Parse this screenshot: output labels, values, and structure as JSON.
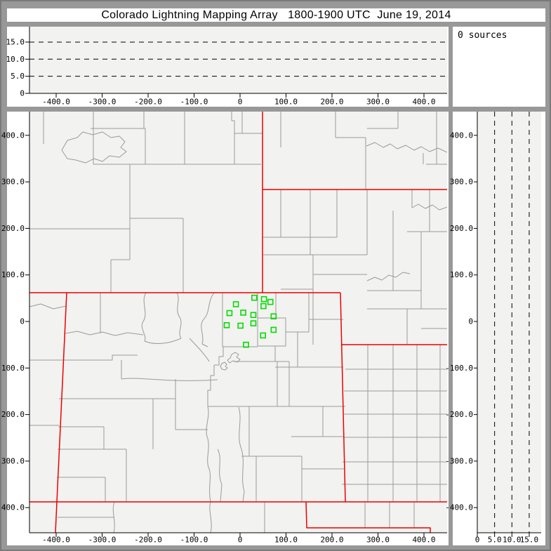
{
  "window": {
    "title": "Colorado Lightning Mapping Array   1800-1900 UTC  June 19, 2014"
  },
  "sources_panel": {
    "label": "0 sources"
  },
  "colors": {
    "frame_gray": "#989898",
    "panel_bg": "#ffffff",
    "plot_bg": "#f2f2f0",
    "county_line": "#9a9a9a",
    "state_line": "#ee0000",
    "station_marker": "#00dd00",
    "axis_and_text": "#000000"
  },
  "axes": {
    "km_ticks": [
      {
        "v": -400,
        "label": "-400.0"
      },
      {
        "v": -300,
        "label": "-300.0"
      },
      {
        "v": -200,
        "label": "-200.0"
      },
      {
        "v": -100,
        "label": "-100.0"
      },
      {
        "v": 0,
        "label": "0"
      },
      {
        "v": 100,
        "label": "100.0"
      },
      {
        "v": 200,
        "label": "200.0"
      },
      {
        "v": 300,
        "label": "300.0"
      },
      {
        "v": 400,
        "label": "400.0"
      }
    ],
    "alt_ticks": [
      {
        "v": 0,
        "label": "0"
      },
      {
        "v": 5,
        "label": "5.0"
      },
      {
        "v": 10,
        "label": "10.0"
      },
      {
        "v": 15,
        "label": "15.0"
      }
    ],
    "alt_gridlines_km": [
      5,
      10,
      15
    ]
  },
  "chart_data": [
    {
      "type": "scatter",
      "panel": "altitude-vs-east-west",
      "xlabel_ticks_km": [
        -400,
        -300,
        -200,
        -100,
        0,
        100,
        200,
        300,
        400
      ],
      "ylabel_ticks_km": [
        0,
        5,
        10,
        15
      ],
      "x_range_km": [
        -455,
        455
      ],
      "y_range_km": [
        0,
        19.5
      ],
      "gridlines_km": [
        5,
        10,
        15
      ],
      "grid_style": "dashed",
      "points": []
    },
    {
      "type": "scatter",
      "panel": "plan-view-map",
      "x_range_km": [
        -458,
        450
      ],
      "y_range_km": [
        -451,
        449
      ],
      "x_ticks_km": [
        -400,
        -300,
        -200,
        -100,
        0,
        100,
        200,
        300,
        400
      ],
      "y_ticks_km": [
        -400,
        -300,
        -200,
        -100,
        0,
        100,
        200,
        300,
        400
      ],
      "lightning_source_points": [],
      "lma_stations_km": [
        {
          "x": 31,
          "y": 51
        },
        {
          "x": 52,
          "y": 48
        },
        {
          "x": 66,
          "y": 42
        },
        {
          "x": -9,
          "y": 37
        },
        {
          "x": 51,
          "y": 33
        },
        {
          "x": 7,
          "y": 19
        },
        {
          "x": -23,
          "y": 18
        },
        {
          "x": 29,
          "y": 14
        },
        {
          "x": 73,
          "y": 11
        },
        {
          "x": -29,
          "y": -8
        },
        {
          "x": 1,
          "y": -9
        },
        {
          "x": 29,
          "y": -4
        },
        {
          "x": 73,
          "y": -18
        },
        {
          "x": 50,
          "y": -30
        },
        {
          "x": 13,
          "y": -50
        }
      ],
      "basemap": "US county boundaries (gray) and state boundaries (red) around Colorado"
    },
    {
      "type": "scatter",
      "panel": "altitude-vs-north-south",
      "xlabel_ticks_km": [
        0,
        5,
        10,
        15
      ],
      "ylabel_ticks_km": [
        -400,
        -300,
        -200,
        -100,
        0,
        100,
        200,
        300,
        400
      ],
      "x_range_km": [
        0,
        18.5
      ],
      "y_range_km": [
        -451,
        449
      ],
      "gridlines_km": [
        5,
        10,
        15
      ],
      "grid_style": "dashed",
      "points": []
    },
    {
      "type": "text",
      "panel": "source-count",
      "label": "0 sources"
    }
  ]
}
